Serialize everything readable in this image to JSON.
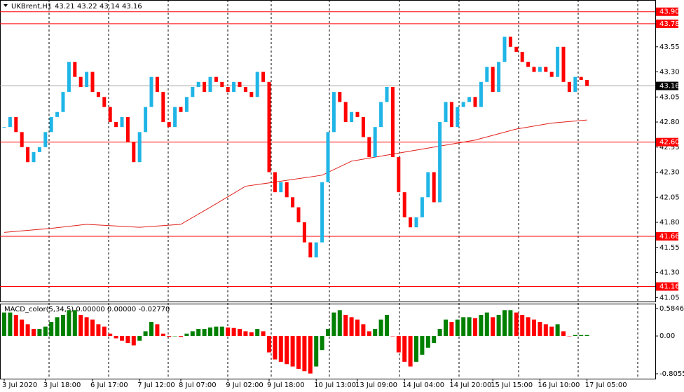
{
  "chart_data": {
    "type": "candlestick",
    "symbol": "UKBrent,H1",
    "ohlc": [
      43.21,
      43.22,
      43.14,
      43.16
    ],
    "categories": [
      "3 Jul 2020",
      null,
      null,
      null,
      null,
      null,
      null,
      "3 Jul 18:00",
      null,
      null,
      null,
      null,
      null,
      null,
      null,
      "6 Jul 17:00",
      null,
      null,
      null,
      null,
      null,
      null,
      null,
      "7 Jul 12:00",
      null,
      null,
      null,
      null,
      null,
      null,
      "8 Jul 07:00",
      null,
      null,
      null,
      null,
      null,
      null,
      null,
      "9 Jul 02:00",
      null,
      null,
      null,
      null,
      null,
      null,
      "9 Jul 18:00",
      null,
      null,
      null,
      null,
      null,
      null,
      null,
      "10 Jul 13:00",
      null,
      null,
      null,
      null,
      null,
      null,
      "13 Jul 09:00",
      null,
      null,
      null,
      null,
      null,
      null,
      null,
      "14 Jul 04:00",
      null,
      null,
      null,
      null,
      null,
      null,
      null,
      "14 Jul 20:00",
      null,
      null,
      null,
      null,
      null,
      null,
      "15 Jul 15:00",
      null,
      null,
      null,
      null,
      null,
      null,
      null,
      "16 Jul 10:00",
      null,
      null,
      null,
      null,
      null,
      null,
      null,
      "17 Jul 05:00"
    ],
    "values": [
      42.75,
      42.85,
      42.7,
      42.55,
      42.4,
      42.5,
      42.55,
      42.7,
      42.85,
      42.9,
      43.1,
      43.4,
      43.25,
      43.15,
      43.3,
      43.1,
      43.05,
      42.95,
      42.8,
      42.75,
      42.85,
      42.6,
      42.4,
      42.7,
      42.95,
      43.25,
      43.1,
      42.8,
      42.75,
      42.95,
      42.9,
      43.05,
      43.15,
      43.2,
      43.1,
      43.25,
      43.2,
      43.15,
      43.1,
      43.2,
      43.15,
      43.1,
      43.05,
      43.3,
      43.2,
      42.3,
      42.1,
      42.2,
      42.05,
      41.95,
      41.8,
      41.6,
      41.45,
      41.6,
      42.2,
      42.7,
      43.1,
      43.0,
      42.8,
      42.9,
      42.85,
      42.65,
      42.45,
      42.75,
      43.0,
      43.15,
      42.45,
      42.1,
      41.85,
      41.75,
      41.85,
      42.05,
      42.3,
      42.0,
      42.8,
      43.0,
      42.75,
      42.95,
      43.0,
      43.05,
      42.95,
      43.2,
      43.35,
      43.1,
      43.4,
      43.65,
      43.55,
      43.5,
      43.4,
      43.35,
      43.3,
      43.35,
      43.3,
      43.25,
      43.55,
      43.2,
      43.1,
      43.25,
      43.22,
      43.16
    ],
    "up_color": "#1fb5e6",
    "down_color": "#ff0000",
    "moving_average": {
      "color": "#e0201a",
      "x": [
        0,
        8,
        14,
        23,
        30,
        35,
        41,
        47,
        54,
        59,
        66,
        73,
        80,
        87,
        93,
        99
      ],
      "values": [
        41.7,
        41.74,
        41.78,
        41.75,
        41.78,
        41.95,
        42.16,
        42.21,
        42.27,
        42.41,
        42.48,
        42.55,
        42.62,
        42.73,
        42.79,
        42.82
      ]
    },
    "ylim": [
      41.01,
      44.01
    ],
    "yticks": [
      43.55,
      {
        "value": 43.3,
        "label": "43.30"
      },
      43.05,
      {
        "value": 42.8,
        "label": "42.80"
      },
      42.55,
      {
        "value": 42.3,
        "label": "42.30"
      },
      42.05,
      {
        "value": 41.8,
        "label": "41.80"
      },
      41.55,
      {
        "value": 41.3,
        "label": "41.30"
      },
      41.05
    ],
    "levels": [
      {
        "value": 43.9,
        "label": "43.90"
      },
      43.78,
      {
        "value": 42.6,
        "label": "42.60"
      },
      41.66,
      41.16
    ],
    "level_color": "#ff0000",
    "last_price": 43.16,
    "indicator": {
      "type": "bar",
      "label": "MACD_color(5,34,5) 0.00000 0.00000 -0.02770",
      "values": [
        0.5,
        0.5,
        0.45,
        0.35,
        0.25,
        0.15,
        0.15,
        0.2,
        0.3,
        0.4,
        0.45,
        0.55,
        0.55,
        0.45,
        0.4,
        0.35,
        0.25,
        0.2,
        0.05,
        -0.05,
        -0.1,
        -0.15,
        -0.2,
        -0.1,
        0.1,
        0.3,
        0.25,
        0.05,
        -0.02,
        0.0,
        -0.02,
        0.05,
        0.1,
        0.15,
        0.15,
        0.18,
        0.2,
        0.2,
        0.18,
        0.17,
        0.15,
        0.1,
        0.08,
        0.15,
        0.1,
        -0.35,
        -0.5,
        -0.55,
        -0.6,
        -0.65,
        -0.7,
        -0.75,
        -0.8,
        -0.65,
        -0.3,
        0.15,
        0.5,
        0.55,
        0.45,
        0.4,
        0.35,
        0.25,
        0.1,
        0.15,
        0.35,
        0.45,
        0.0,
        -0.35,
        -0.55,
        -0.65,
        -0.55,
        -0.4,
        -0.25,
        -0.15,
        0.15,
        0.35,
        0.3,
        0.35,
        0.4,
        0.4,
        0.38,
        0.45,
        0.5,
        0.4,
        0.45,
        0.55,
        0.55,
        0.5,
        0.45,
        0.4,
        0.35,
        0.3,
        0.25,
        0.2,
        0.25,
        0.1,
        0.0,
        0.02,
        0.02,
        0.02
      ],
      "rise_color": "#008000",
      "fall_color": "#ff0000",
      "ylim": [
        -0.91,
        0.674
      ],
      "yticks": [
        0.58466,
        {
          "value": 0,
          "label": "0.00"
        },
        -0.80553
      ]
    }
  }
}
